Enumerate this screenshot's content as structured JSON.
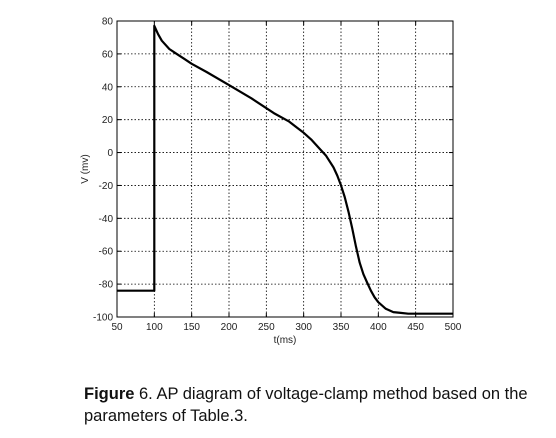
{
  "chart_data": {
    "type": "line",
    "title": "",
    "xlabel": "t(ms)",
    "ylabel": "V (mv)",
    "xlim": [
      50,
      500
    ],
    "ylim": [
      -100,
      80
    ],
    "xticks": [
      50,
      100,
      150,
      200,
      250,
      300,
      350,
      400,
      450,
      500
    ],
    "yticks": [
      80,
      60,
      40,
      20,
      0,
      -20,
      -40,
      -60,
      -80,
      -100
    ],
    "grid": true,
    "grid_style": "dotted",
    "line_color": "#000000",
    "series": [
      {
        "x": [
          50,
          100,
          100,
          101,
          105,
          110,
          120,
          130,
          140,
          150,
          170,
          200,
          230,
          260,
          280,
          300,
          310,
          320,
          330,
          340,
          345,
          350,
          355,
          360,
          365,
          370,
          375,
          380,
          385,
          390,
          395,
          400,
          410,
          420,
          430,
          440,
          450,
          460,
          470,
          480,
          490,
          500
        ],
        "y": [
          -84,
          -84,
          77,
          76,
          72,
          68,
          63,
          60,
          57,
          54,
          49,
          41,
          33,
          24,
          19,
          12,
          8,
          3,
          -2,
          -9,
          -14,
          -20,
          -27,
          -36,
          -46,
          -57,
          -67,
          -74,
          -79,
          -84,
          -88,
          -91,
          -95,
          -97,
          -97.5,
          -98,
          -98,
          -98,
          -98,
          -98,
          -98,
          -98
        ]
      }
    ]
  },
  "caption": {
    "label": "Figure",
    "text": " 6.  AP diagram of voltage-clamp method based on the parameters of Table.3."
  }
}
